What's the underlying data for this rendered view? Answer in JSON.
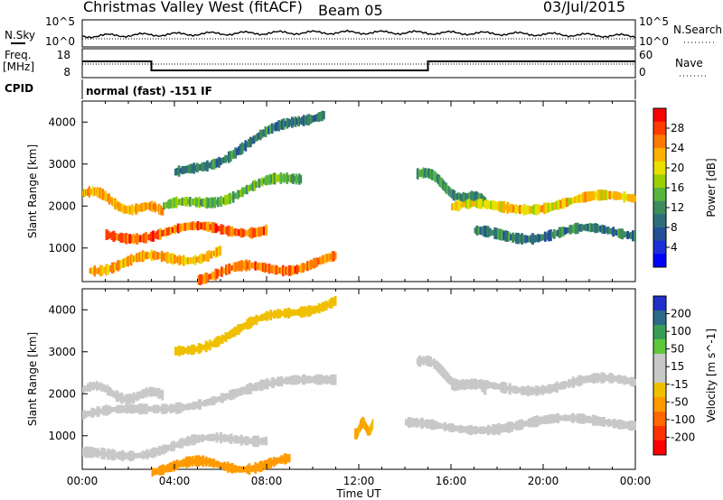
{
  "header": {
    "station": "Christmas Valley West (fitACF)",
    "beam": "Beam 05",
    "date": "03/Jul/2015"
  },
  "summary_panels": {
    "nsky_label": "N.Sky",
    "nsearch_label": "N.Search",
    "freq_label_line1": "Freq.",
    "freq_label_line2": "[MHz]",
    "nave_label": "Nave",
    "cpid_label": "CPID",
    "cpid_value": "normal (fast) -151 IF",
    "noise_ticks": [
      "10^5",
      "10^0"
    ],
    "freq_ticks": [
      "18",
      "8"
    ],
    "nave_ticks": [
      "60",
      "0"
    ]
  },
  "colorbars": {
    "power": {
      "label": "Power [dB]",
      "ticks": [
        "28",
        "24",
        "20",
        "16",
        "12",
        "8",
        "4"
      ],
      "colors": [
        "#ff0000",
        "#ff3c00",
        "#ff7a00",
        "#ffb000",
        "#e8e000",
        "#9cd000",
        "#56b640",
        "#3c8c5c",
        "#2e6e7c",
        "#254f96",
        "#1a2fd8",
        "#0000ff"
      ]
    },
    "velocity": {
      "label": "Velocity [m s^-1]",
      "ticks": [
        "200",
        "100",
        "50",
        "15",
        "-15",
        "-50",
        "-100",
        "-200"
      ],
      "colors": [
        "#2030c8",
        "#2c6a8a",
        "#389e56",
        "#5ec83c",
        "#c8c8c8",
        "#c8c8c8",
        "#f0c000",
        "#ff9a00",
        "#ff6800",
        "#ff3000",
        "#ff0000"
      ]
    }
  },
  "chart_data": [
    {
      "type": "line",
      "title": "Christmas Valley West (fitACF)",
      "series": [
        {
          "name": "N.Sky",
          "x": [
            "00:00",
            "02:00",
            "04:00",
            "06:00",
            "08:00",
            "10:00",
            "12:00",
            "14:00",
            "16:00",
            "18:00",
            "20:00",
            "22:00",
            "24:00"
          ],
          "values": [
            1000.0,
            1200.0,
            1600.0,
            2500.0,
            4000.0,
            5000.0,
            4500.0,
            3500.0,
            3000.0,
            2000.0,
            1500.0,
            1200.0,
            1000.0
          ]
        },
        {
          "name": "Freq.",
          "x": [
            "00:00",
            "03:00",
            "03:00",
            "15:00",
            "15:00",
            "24:00"
          ],
          "values": [
            16,
            16,
            11,
            11,
            16,
            16
          ]
        }
      ]
    },
    {
      "type": "heatmap",
      "title": "Power [dB]",
      "xlabel": "Time UT",
      "ylabel": "Slant Range [km]",
      "x_ticks": [
        "00:00",
        "04:00",
        "08:00",
        "12:00",
        "16:00",
        "20:00",
        "00:00"
      ],
      "y_ticks": [
        "1000",
        "2000",
        "3000",
        "4000"
      ],
      "xlim": [
        0,
        24
      ],
      "ylim": [
        200,
        4500
      ],
      "zlim": [
        0,
        30
      ],
      "bands": [
        {
          "t0": 0,
          "t1": 3.5,
          "r0": 2300,
          "r1": 1800,
          "z": 22
        },
        {
          "t0": 3.5,
          "t1": 9.5,
          "r0": 1900,
          "r1": 2700,
          "z": 14
        },
        {
          "t0": 4,
          "t1": 10.5,
          "r0": 2700,
          "r1": 4300,
          "z": 9
        },
        {
          "t0": 1,
          "t1": 8,
          "r0": 1300,
          "r1": 1500,
          "z": 26
        },
        {
          "t0": 0.3,
          "t1": 6,
          "r0": 550,
          "r1": 900,
          "z": 22
        },
        {
          "t0": 5,
          "t1": 11,
          "r0": 350,
          "r1": 700,
          "z": 25
        },
        {
          "t0": 14.5,
          "t1": 17.5,
          "r0": 2800,
          "r1": 2000,
          "z": 11
        },
        {
          "t0": 16,
          "t1": 24,
          "r0": 1900,
          "r1": 2200,
          "z": 20
        },
        {
          "t0": 17,
          "t1": 24,
          "r0": 1300,
          "r1": 1400,
          "z": 9
        }
      ]
    },
    {
      "type": "heatmap",
      "title": "Velocity [m s^-1]",
      "xlabel": "Time UT",
      "ylabel": "Slant Range [km]",
      "x_ticks": [
        "00:00",
        "04:00",
        "08:00",
        "12:00",
        "16:00",
        "20:00",
        "00:00"
      ],
      "y_ticks": [
        "1000",
        "2000",
        "3000",
        "4000"
      ],
      "xlim": [
        0,
        24
      ],
      "ylim": [
        200,
        4500
      ],
      "zlim": [
        -200,
        200
      ],
      "bands": [
        {
          "t0": 0,
          "t1": 3.5,
          "r0": 2100,
          "r1": 1900,
          "z": 0
        },
        {
          "t0": 0,
          "t1": 11,
          "r0": 1400,
          "r1": 2400,
          "z": 0
        },
        {
          "t0": 0,
          "t1": 8,
          "r0": 500,
          "r1": 1000,
          "z": 0
        },
        {
          "t0": 4,
          "t1": 11,
          "r0": 3000,
          "r1": 4300,
          "z": -30
        },
        {
          "t0": 11.8,
          "t1": 12.6,
          "r0": 1150,
          "r1": 1250,
          "z": -60
        },
        {
          "t0": 3,
          "t1": 9,
          "r0": 250,
          "r1": 350,
          "z": -80
        },
        {
          "t0": 14.5,
          "t1": 17.5,
          "r0": 2800,
          "r1": 2000,
          "z": 0
        },
        {
          "t0": 16,
          "t1": 24,
          "r0": 2100,
          "r1": 2300,
          "z": 0
        },
        {
          "t0": 14,
          "t1": 24,
          "r0": 1200,
          "r1": 1350,
          "z": 0
        }
      ]
    }
  ]
}
